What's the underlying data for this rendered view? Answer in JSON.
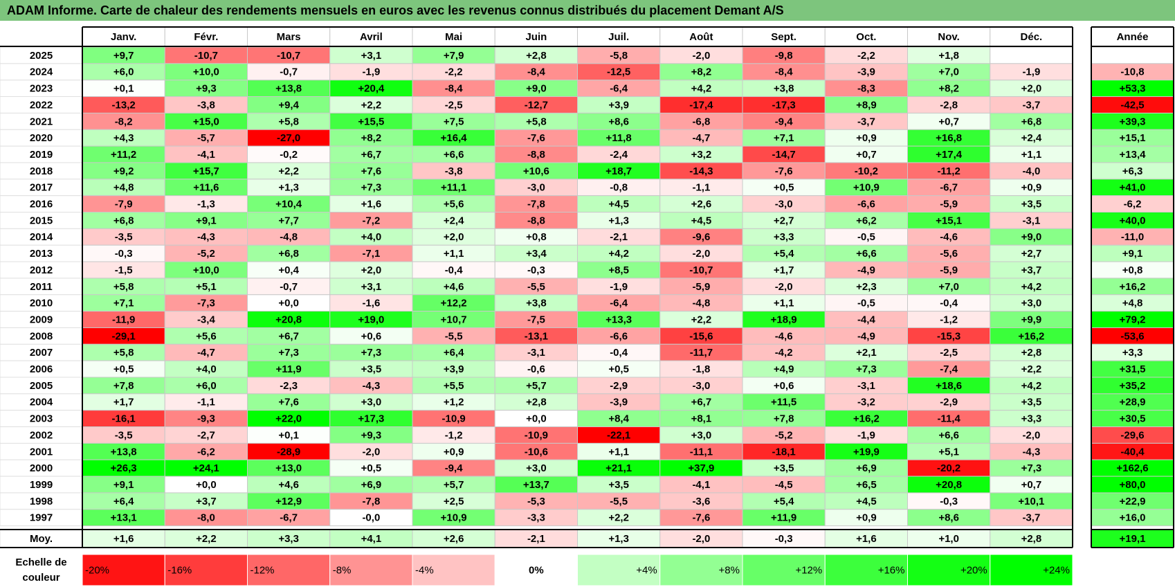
{
  "title": "ADAM Informe. Carte de chaleur des rendements mensuels en euros avec les revenus connus distribués du placement Demant A/S",
  "chart_data": {
    "type": "heatmap",
    "title": "ADAM Informe. Carte de chaleur des rendements mensuels en euros avec les revenus connus distribués du placement Demant A/S",
    "months": [
      "Janv.",
      "Févr.",
      "Mars",
      "Avril",
      "Mai",
      "Juin",
      "Juil.",
      "Août",
      "Sept.",
      "Oct.",
      "Nov.",
      "Déc."
    ],
    "year_header": "Année",
    "rows": [
      {
        "year": "2025",
        "values": [
          "+9,7",
          "-10,7",
          "-10,7",
          "+3,1",
          "+7,9",
          "+2,8",
          "-5,8",
          "-2,0",
          "-9,8",
          "-2,2",
          "+1,8",
          ""
        ],
        "annual": ""
      },
      {
        "year": "2024",
        "values": [
          "+6,0",
          "+10,0",
          "-0,7",
          "-1,9",
          "-2,2",
          "-8,4",
          "-12,5",
          "+8,2",
          "-8,4",
          "-3,9",
          "+7,0",
          "-1,9"
        ],
        "annual": "-10,8"
      },
      {
        "year": "2023",
        "values": [
          "+0,1",
          "+9,3",
          "+13,8",
          "+20,4",
          "-8,4",
          "+9,0",
          "-6,4",
          "+4,2",
          "+3,8",
          "-8,3",
          "+8,2",
          "+2,0"
        ],
        "annual": "+53,3"
      },
      {
        "year": "2022",
        "values": [
          "-13,2",
          "-3,8",
          "+9,4",
          "+2,2",
          "-2,5",
          "-12,7",
          "+3,9",
          "-17,4",
          "-17,3",
          "+8,9",
          "-2,8",
          "-3,7"
        ],
        "annual": "-42,5"
      },
      {
        "year": "2021",
        "values": [
          "-8,2",
          "+15,0",
          "+5,8",
          "+15,5",
          "+7,5",
          "+5,8",
          "+8,6",
          "-6,8",
          "-9,4",
          "-3,7",
          "+0,7",
          "+6,8"
        ],
        "annual": "+39,3"
      },
      {
        "year": "2020",
        "values": [
          "+4,3",
          "-5,7",
          "-27,0",
          "+8,2",
          "+16,4",
          "-7,6",
          "+11,8",
          "-4,7",
          "+7,1",
          "+0,9",
          "+16,8",
          "+2,4"
        ],
        "annual": "+15,1"
      },
      {
        "year": "2019",
        "values": [
          "+11,2",
          "-4,1",
          "-0,2",
          "+6,7",
          "+6,6",
          "-8,8",
          "-2,4",
          "+3,2",
          "-14,7",
          "+0,7",
          "+17,4",
          "+1,1"
        ],
        "annual": "+13,4"
      },
      {
        "year": "2018",
        "values": [
          "+9,2",
          "+15,7",
          "+2,2",
          "+7,6",
          "-3,8",
          "+10,6",
          "+18,7",
          "-14,3",
          "-7,6",
          "-10,2",
          "-11,2",
          "-4,0"
        ],
        "annual": "+6,3"
      },
      {
        "year": "2017",
        "values": [
          "+4,8",
          "+11,6",
          "+1,3",
          "+7,3",
          "+11,1",
          "-3,0",
          "-0,8",
          "-1,1",
          "+0,5",
          "+10,9",
          "-6,7",
          "+0,9"
        ],
        "annual": "+41,0"
      },
      {
        "year": "2016",
        "values": [
          "-7,9",
          "-1,3",
          "+10,4",
          "+1,6",
          "+5,6",
          "-7,8",
          "+4,5",
          "+2,6",
          "-3,0",
          "-6,6",
          "-5,9",
          "+3,5"
        ],
        "annual": "-6,2"
      },
      {
        "year": "2015",
        "values": [
          "+6,8",
          "+9,1",
          "+7,7",
          "-7,2",
          "+2,4",
          "-8,8",
          "+1,3",
          "+4,5",
          "+2,7",
          "+6,2",
          "+15,1",
          "-3,1"
        ],
        "annual": "+40,0"
      },
      {
        "year": "2014",
        "values": [
          "-3,5",
          "-4,3",
          "-4,8",
          "+4,0",
          "+2,0",
          "+0,8",
          "-2,1",
          "-9,6",
          "+3,3",
          "-0,5",
          "-4,6",
          "+9,0"
        ],
        "annual": "-11,0"
      },
      {
        "year": "2013",
        "values": [
          "-0,3",
          "-5,2",
          "+6,8",
          "-7,1",
          "+1,1",
          "+3,4",
          "+4,2",
          "-2,0",
          "+5,4",
          "+6,6",
          "-5,6",
          "+2,7"
        ],
        "annual": "+9,1"
      },
      {
        "year": "2012",
        "values": [
          "-1,5",
          "+10,0",
          "+0,4",
          "+2,0",
          "-0,4",
          "-0,3",
          "+8,5",
          "-10,7",
          "+1,7",
          "-4,9",
          "-5,9",
          "+3,7"
        ],
        "annual": "+0,8"
      },
      {
        "year": "2011",
        "values": [
          "+5,8",
          "+5,1",
          "-0,7",
          "+3,1",
          "+4,6",
          "-5,5",
          "-1,9",
          "-5,9",
          "-2,0",
          "+2,3",
          "+7,0",
          "+4,2"
        ],
        "annual": "+16,2"
      },
      {
        "year": "2010",
        "values": [
          "+7,1",
          "-7,3",
          "+0,0",
          "-1,6",
          "+12,2",
          "+3,8",
          "-6,4",
          "-4,8",
          "+1,1",
          "-0,5",
          "-0,4",
          "+3,0"
        ],
        "annual": "+4,8"
      },
      {
        "year": "2009",
        "values": [
          "-11,9",
          "-3,4",
          "+20,8",
          "+19,0",
          "+10,7",
          "-7,5",
          "+13,3",
          "+2,2",
          "+18,9",
          "-4,4",
          "-1,2",
          "+9,9"
        ],
        "annual": "+79,2"
      },
      {
        "year": "2008",
        "values": [
          "-29,1",
          "+5,6",
          "+6,7",
          "+0,6",
          "-5,5",
          "-13,1",
          "-6,6",
          "-15,6",
          "-4,6",
          "-4,9",
          "-15,3",
          "+16,2"
        ],
        "annual": "-53,6"
      },
      {
        "year": "2007",
        "values": [
          "+5,8",
          "-4,7",
          "+7,3",
          "+7,3",
          "+6,4",
          "-3,1",
          "-0,4",
          "-11,7",
          "-4,2",
          "+2,1",
          "-2,5",
          "+2,8"
        ],
        "annual": "+3,3"
      },
      {
        "year": "2006",
        "values": [
          "+0,5",
          "+4,0",
          "+11,9",
          "+3,5",
          "+3,9",
          "-0,6",
          "+0,5",
          "-1,8",
          "+4,9",
          "+7,3",
          "-7,4",
          "+2,2"
        ],
        "annual": "+31,5"
      },
      {
        "year": "2005",
        "values": [
          "+7,8",
          "+6,0",
          "-2,3",
          "-4,3",
          "+5,5",
          "+5,7",
          "-2,9",
          "-3,0",
          "+0,6",
          "-3,1",
          "+18,6",
          "+4,2"
        ],
        "annual": "+35,2"
      },
      {
        "year": "2004",
        "values": [
          "+1,7",
          "-1,1",
          "+7,6",
          "+3,0",
          "+1,2",
          "+2,8",
          "-3,9",
          "+6,7",
          "+11,5",
          "-3,2",
          "-2,9",
          "+3,5"
        ],
        "annual": "+28,9"
      },
      {
        "year": "2003",
        "values": [
          "-16,1",
          "-9,3",
          "+22,0",
          "+17,3",
          "-10,9",
          "+0,0",
          "+8,4",
          "+8,1",
          "+7,8",
          "+16,2",
          "-11,4",
          "+3,3"
        ],
        "annual": "+30,5"
      },
      {
        "year": "2002",
        "values": [
          "-3,5",
          "-2,7",
          "+0,1",
          "+9,3",
          "-1,2",
          "-10,9",
          "-22,1",
          "+3,0",
          "-5,2",
          "-1,9",
          "+6,6",
          "-2,0"
        ],
        "annual": "-29,6"
      },
      {
        "year": "2001",
        "values": [
          "+13,8",
          "-6,2",
          "-28,9",
          "-2,0",
          "+0,9",
          "-10,6",
          "+1,1",
          "-11,1",
          "-18,1",
          "+19,9",
          "+5,1",
          "-4,3"
        ],
        "annual": "-40,4"
      },
      {
        "year": "2000",
        "values": [
          "+26,3",
          "+24,1",
          "+13,0",
          "+0,5",
          "-9,4",
          "+3,0",
          "+21,1",
          "+37,9",
          "+3,5",
          "+6,9",
          "-20,2",
          "+7,3"
        ],
        "annual": "+162,6"
      },
      {
        "year": "1999",
        "values": [
          "+9,1",
          "+0,0",
          "+4,6",
          "+6,9",
          "+5,7",
          "+13,7",
          "+3,5",
          "-4,1",
          "-4,5",
          "+6,5",
          "+20,8",
          "+0,7"
        ],
        "annual": "+80,0"
      },
      {
        "year": "1998",
        "values": [
          "+6,4",
          "+3,7",
          "+12,9",
          "-7,8",
          "+2,5",
          "-5,3",
          "-5,5",
          "-3,6",
          "+5,4",
          "+4,5",
          "-0,3",
          "+10,1"
        ],
        "annual": "+22,9"
      },
      {
        "year": "1997",
        "values": [
          "+13,1",
          "-8,0",
          "-6,7",
          "-0,0",
          "+10,9",
          "-3,3",
          "+2,2",
          "-7,6",
          "+11,9",
          "+0,9",
          "+8,6",
          "-3,7"
        ],
        "annual": "+16,0"
      }
    ],
    "average": {
      "label": "Moy.",
      "values": [
        "+1,6",
        "+2,2",
        "+3,3",
        "+4,1",
        "+2,6",
        "-2,1",
        "+1,3",
        "-2,0",
        "-0,3",
        "+1,6",
        "+1,0",
        "+2,8"
      ],
      "annual": "+19,1"
    },
    "scale": {
      "label_line1": "Echelle de",
      "label_line2": "couleur",
      "labels": [
        "-20%",
        "-16%",
        "-12%",
        "-8%",
        "-4%",
        "0%",
        "+4%",
        "+8%",
        "+12%",
        "+16%",
        "+20%",
        "+24%"
      ]
    }
  },
  "colors": {
    "title_bg": "#7dc57d",
    "max_red": "#ff0000",
    "max_green": "#00ff00",
    "neutral": "#ffffff"
  }
}
